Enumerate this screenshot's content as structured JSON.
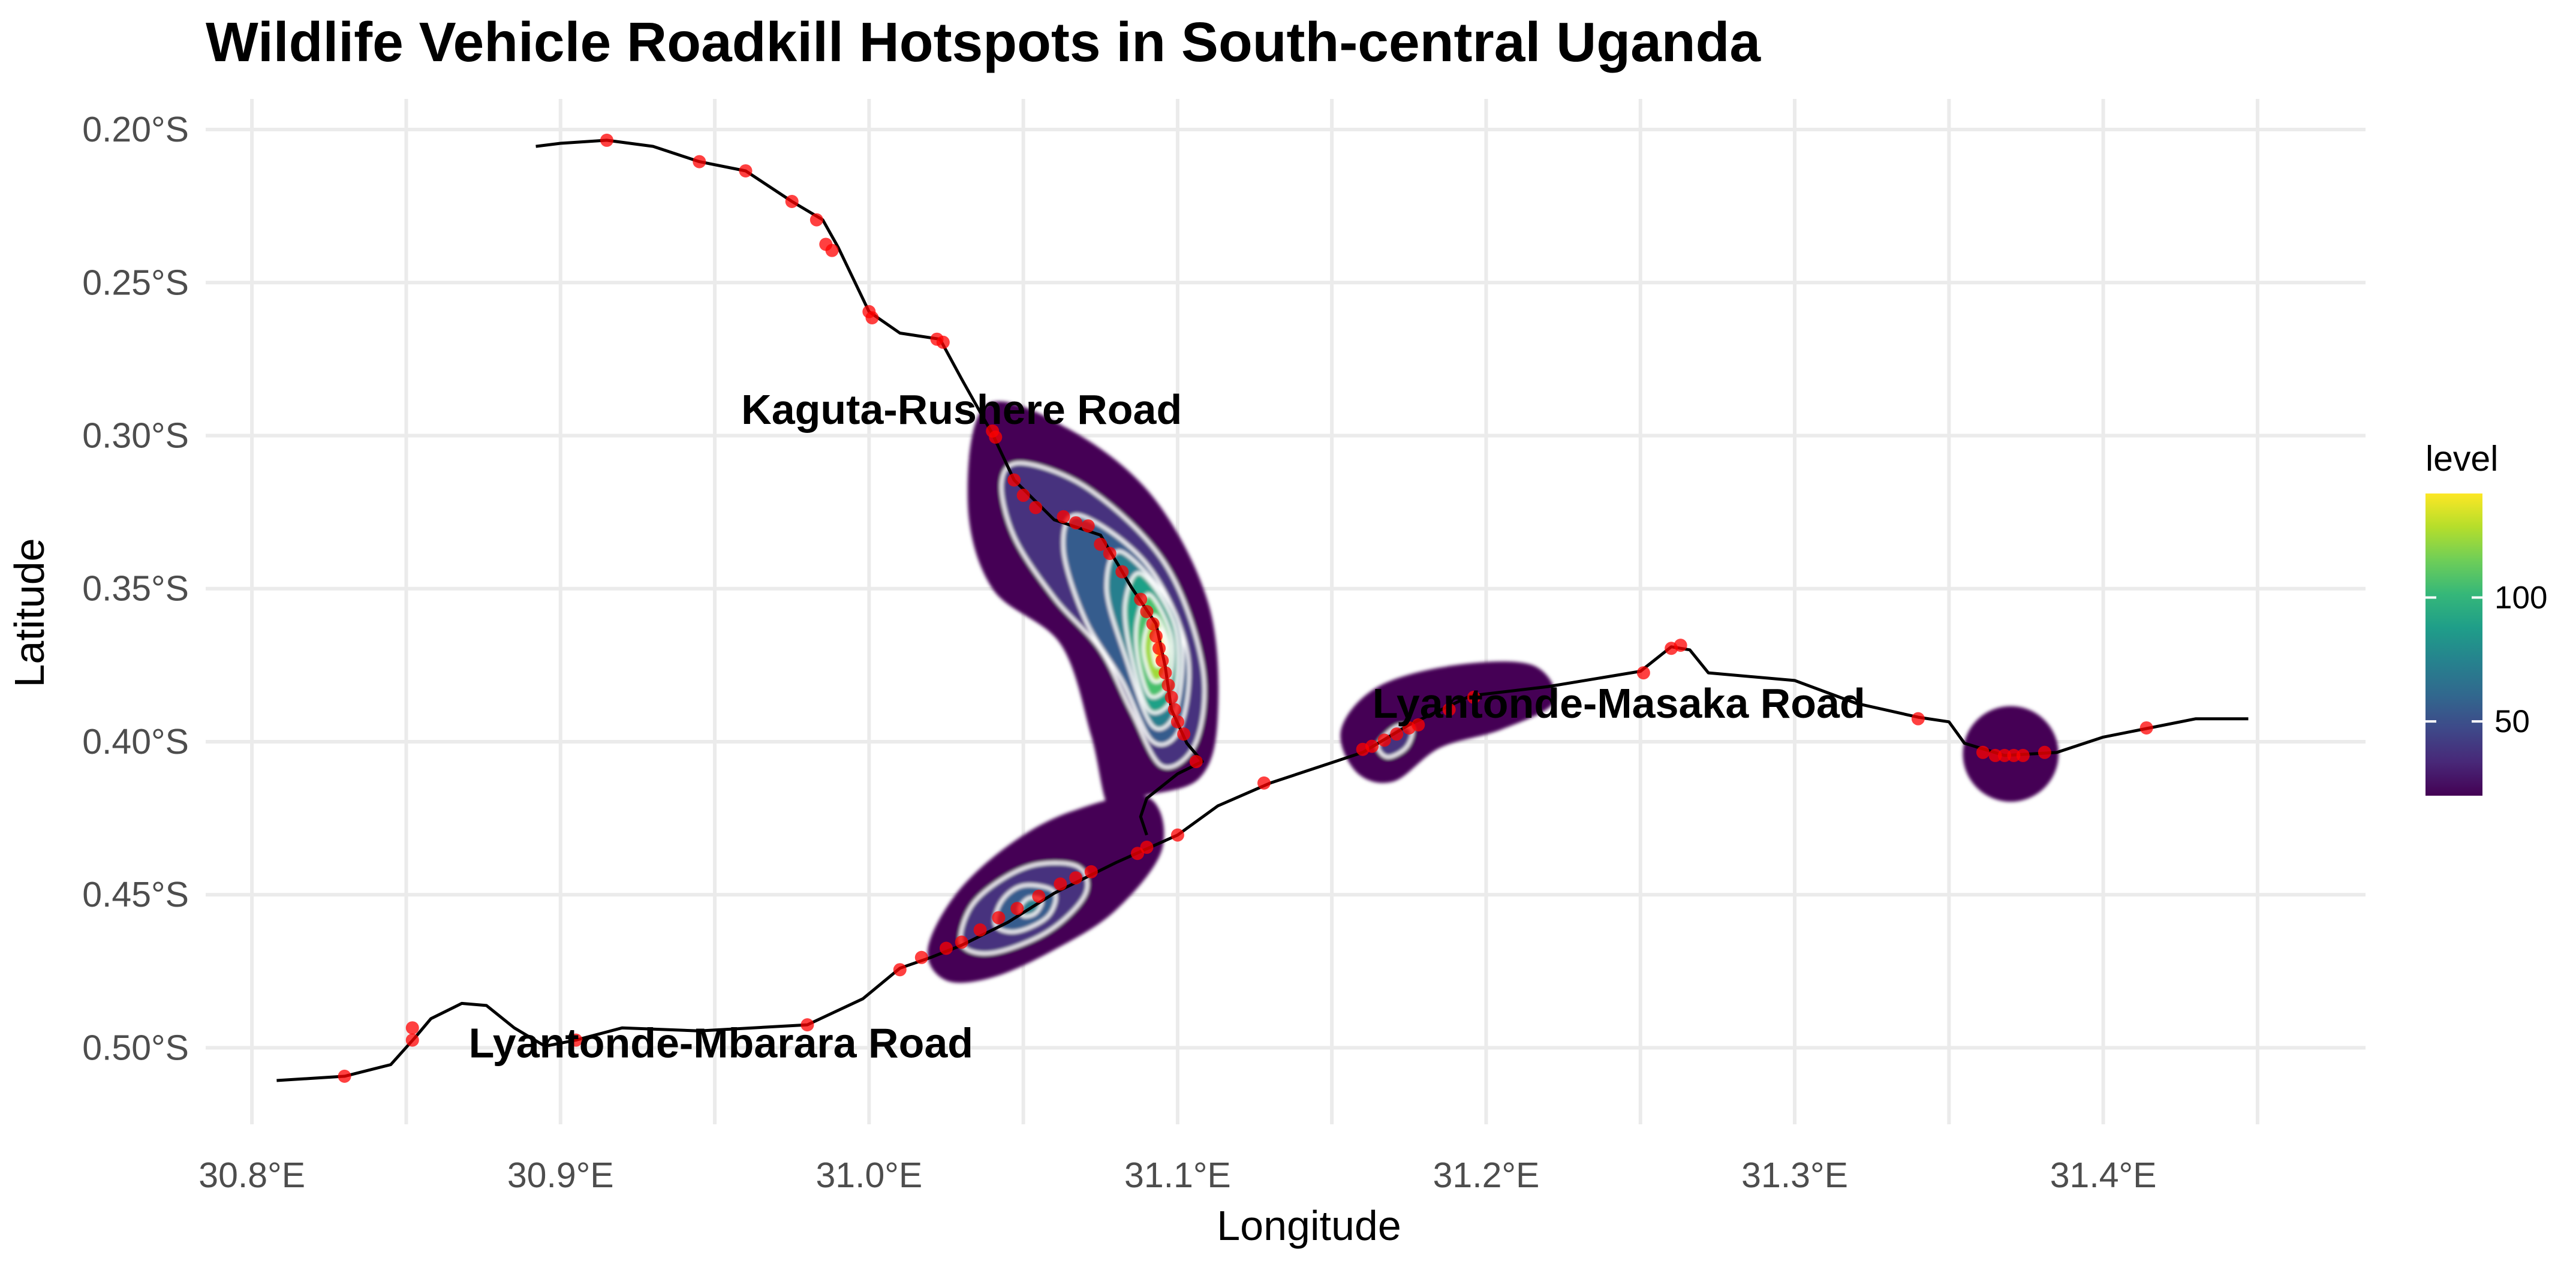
{
  "chart_data": {
    "type": "map-density",
    "title": "Wildlife Vehicle Roadkill Hotspots in South-central Uganda",
    "xlabel": "Longitude",
    "ylabel": "Latitude",
    "xlim": [
      30.785,
      31.485
    ],
    "ylim": [
      -0.525,
      -0.19
    ],
    "x_ticks": [
      {
        "value": 30.8,
        "label": "30.8°E"
      },
      {
        "value": 30.9,
        "label": "30.9°E"
      },
      {
        "value": 31.0,
        "label": "31.0°E"
      },
      {
        "value": 31.1,
        "label": "31.1°E"
      },
      {
        "value": 31.2,
        "label": "31.2°E"
      },
      {
        "value": 31.3,
        "label": "31.3°E"
      },
      {
        "value": 31.4,
        "label": "31.4°E"
      }
    ],
    "y_ticks": [
      {
        "value": -0.2,
        "label": "0.20°S"
      },
      {
        "value": -0.25,
        "label": "0.25°S"
      },
      {
        "value": -0.3,
        "label": "0.30°S"
      },
      {
        "value": -0.35,
        "label": "0.35°S"
      },
      {
        "value": -0.4,
        "label": "0.40°S"
      },
      {
        "value": -0.45,
        "label": "0.45°S"
      },
      {
        "value": -0.5,
        "label": "0.50°S"
      }
    ],
    "legend": {
      "title": "level",
      "position": "right",
      "min": 20,
      "max": 142,
      "ticks": [
        {
          "value": 50,
          "label": "50"
        },
        {
          "value": 100,
          "label": "100"
        }
      ],
      "colors": [
        "#440154",
        "#482878",
        "#3e4989",
        "#31688e",
        "#26828e",
        "#1f9e89",
        "#35b779",
        "#6ece58",
        "#b5de2b",
        "#fde725"
      ]
    },
    "road_labels": [
      {
        "text": "Kaguta-Rushere Road",
        "lon": 31.03,
        "lat": -0.2915
      },
      {
        "text": "Lyantonde-Masaka Road",
        "lon": 31.243,
        "lat": -0.3875
      },
      {
        "text": "Lyantonde-Mbarara Road",
        "lon": 30.952,
        "lat": -0.4985
      }
    ],
    "hotspots": [
      {
        "name": "kaguta-rushere-hotspot",
        "peak_lon": 31.095,
        "peak_lat": -0.367,
        "peak_level": 140
      },
      {
        "name": "lyantonde-mbarara-hotspot",
        "peak_lon": 31.052,
        "peak_lat": -0.453,
        "peak_level": 80
      },
      {
        "name": "lyantonde-masaka-hotspot",
        "peak_lon": 31.172,
        "peak_lat": -0.399,
        "peak_level": 40
      },
      {
        "name": "east-masaka-hotspot",
        "peak_lon": 31.37,
        "peak_lat": -0.404,
        "peak_level": 25
      }
    ],
    "road": [
      [
        30.808,
        -0.5107
      ],
      [
        30.83,
        -0.5093
      ],
      [
        30.845,
        -0.5055
      ],
      [
        30.853,
        -0.4965
      ],
      [
        30.858,
        -0.4905
      ],
      [
        30.868,
        -0.4855
      ],
      [
        30.876,
        -0.4862
      ],
      [
        30.885,
        -0.4935
      ],
      [
        30.895,
        -0.4995
      ],
      [
        30.905,
        -0.4975
      ],
      [
        30.92,
        -0.4935
      ],
      [
        30.945,
        -0.4945
      ],
      [
        30.98,
        -0.4925
      ],
      [
        30.998,
        -0.484
      ],
      [
        31.01,
        -0.474
      ],
      [
        31.02,
        -0.4705
      ],
      [
        31.03,
        -0.4665
      ],
      [
        31.045,
        -0.459
      ],
      [
        31.06,
        -0.4495
      ],
      [
        31.08,
        -0.4395
      ],
      [
        31.09,
        -0.435
      ],
      [
        31.1,
        -0.4305
      ],
      [
        31.113,
        -0.421
      ],
      [
        31.13,
        -0.4135
      ],
      [
        31.16,
        -0.4035
      ],
      [
        31.175,
        -0.3945
      ],
      [
        31.195,
        -0.385
      ],
      [
        31.22,
        -0.382
      ],
      [
        31.25,
        -0.377
      ],
      [
        31.26,
        -0.369
      ],
      [
        31.266,
        -0.37
      ],
      [
        31.272,
        -0.3775
      ],
      [
        31.3,
        -0.38
      ],
      [
        31.32,
        -0.3875
      ],
      [
        31.34,
        -0.392
      ],
      [
        31.35,
        -0.3935
      ],
      [
        31.355,
        -0.4005
      ],
      [
        31.368,
        -0.4045
      ],
      [
        31.385,
        -0.4035
      ],
      [
        31.4,
        -0.3985
      ],
      [
        31.415,
        -0.3955
      ],
      [
        31.43,
        -0.3925
      ],
      [
        31.447,
        -0.3925
      ]
    ],
    "road_north": [
      [
        30.892,
        -0.2055
      ],
      [
        30.9,
        -0.2045
      ],
      [
        30.915,
        -0.2035
      ],
      [
        30.93,
        -0.2055
      ],
      [
        30.945,
        -0.2105
      ],
      [
        30.96,
        -0.2135
      ],
      [
        30.975,
        -0.2235
      ],
      [
        30.985,
        -0.2295
      ],
      [
        30.99,
        -0.2385
      ],
      [
        31.0,
        -0.2595
      ],
      [
        31.01,
        -0.2665
      ],
      [
        31.023,
        -0.2685
      ],
      [
        31.03,
        -0.2815
      ],
      [
        31.04,
        -0.2995
      ],
      [
        31.047,
        -0.3145
      ],
      [
        31.06,
        -0.3275
      ],
      [
        31.075,
        -0.3325
      ],
      [
        31.085,
        -0.3495
      ],
      [
        31.093,
        -0.3615
      ],
      [
        31.096,
        -0.3755
      ],
      [
        31.098,
        -0.3895
      ],
      [
        31.103,
        -0.4005
      ],
      [
        31.108,
        -0.4065
      ],
      [
        31.1,
        -0.4105
      ],
      [
        31.09,
        -0.4185
      ],
      [
        31.088,
        -0.4245
      ],
      [
        31.09,
        -0.4305
      ]
    ],
    "roadkill_points": [
      [
        30.915,
        -0.2035
      ],
      [
        30.945,
        -0.2105
      ],
      [
        30.96,
        -0.2135
      ],
      [
        30.975,
        -0.2235
      ],
      [
        30.983,
        -0.2295
      ],
      [
        30.986,
        -0.2375
      ],
      [
        30.988,
        -0.2395
      ],
      [
        31.0,
        -0.2595
      ],
      [
        31.001,
        -0.2615
      ],
      [
        31.022,
        -0.2685
      ],
      [
        31.024,
        -0.2695
      ],
      [
        31.04,
        -0.2985
      ],
      [
        31.041,
        -0.3005
      ],
      [
        31.047,
        -0.3145
      ],
      [
        31.05,
        -0.3195
      ],
      [
        31.054,
        -0.3235
      ],
      [
        31.063,
        -0.3265
      ],
      [
        31.067,
        -0.3285
      ],
      [
        31.071,
        -0.3295
      ],
      [
        31.075,
        -0.3355
      ],
      [
        31.078,
        -0.3385
      ],
      [
        31.082,
        -0.3445
      ],
      [
        31.088,
        -0.3535
      ],
      [
        31.09,
        -0.3575
      ],
      [
        31.092,
        -0.3615
      ],
      [
        31.093,
        -0.3655
      ],
      [
        31.094,
        -0.3695
      ],
      [
        31.095,
        -0.3735
      ],
      [
        31.096,
        -0.3775
      ],
      [
        31.097,
        -0.3815
      ],
      [
        31.098,
        -0.3855
      ],
      [
        31.099,
        -0.3895
      ],
      [
        31.1,
        -0.3935
      ],
      [
        31.102,
        -0.3975
      ],
      [
        31.106,
        -0.4065
      ],
      [
        31.128,
        -0.4135
      ],
      [
        31.16,
        -0.4025
      ],
      [
        31.163,
        -0.4015
      ],
      [
        31.167,
        -0.3995
      ],
      [
        31.171,
        -0.3975
      ],
      [
        31.175,
        -0.3955
      ],
      [
        31.178,
        -0.3945
      ],
      [
        31.188,
        -0.3895
      ],
      [
        31.196,
        -0.3855
      ],
      [
        31.251,
        -0.3775
      ],
      [
        31.26,
        -0.3695
      ],
      [
        31.263,
        -0.3685
      ],
      [
        31.34,
        -0.3925
      ],
      [
        31.361,
        -0.4035
      ],
      [
        31.365,
        -0.4045
      ],
      [
        31.368,
        -0.4045
      ],
      [
        31.371,
        -0.4045
      ],
      [
        31.374,
        -0.4045
      ],
      [
        31.381,
        -0.4035
      ],
      [
        31.414,
        -0.3955
      ],
      [
        31.1,
        -0.4305
      ],
      [
        31.09,
        -0.4345
      ],
      [
        31.087,
        -0.4365
      ],
      [
        31.072,
        -0.4425
      ],
      [
        31.067,
        -0.4445
      ],
      [
        31.062,
        -0.4465
      ],
      [
        31.055,
        -0.4505
      ],
      [
        31.048,
        -0.4545
      ],
      [
        31.042,
        -0.4575
      ],
      [
        31.036,
        -0.4615
      ],
      [
        31.03,
        -0.4655
      ],
      [
        31.025,
        -0.4675
      ],
      [
        31.017,
        -0.4705
      ],
      [
        31.01,
        -0.4745
      ],
      [
        30.98,
        -0.4925
      ],
      [
        30.905,
        -0.4975
      ],
      [
        30.852,
        -0.4935
      ],
      [
        30.852,
        -0.4975
      ],
      [
        30.83,
        -0.5093
      ]
    ]
  }
}
